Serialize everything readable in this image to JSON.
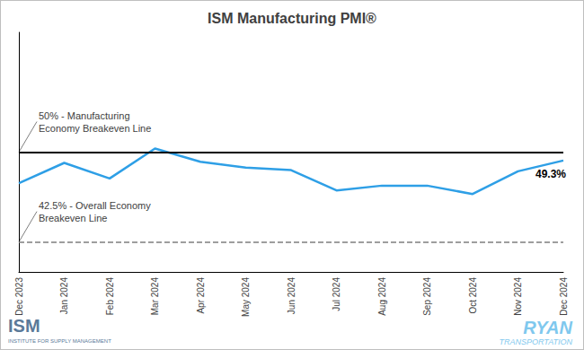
{
  "chart_data": {
    "type": "line",
    "title": "ISM Manufacturing PMI®",
    "categories": [
      "Dec 2023",
      "Jan 2024",
      "Feb 2024",
      "Mar 2024",
      "Apr 2024",
      "May 2024",
      "Jun 2024",
      "Jul 2024",
      "Aug 2024",
      "Sep 2024",
      "Oct 2024",
      "Nov 2024",
      "Dec 2024"
    ],
    "values": [
      47.4,
      49.1,
      47.8,
      50.3,
      49.2,
      48.7,
      48.5,
      46.8,
      47.2,
      47.2,
      46.5,
      48.4,
      49.3
    ],
    "value_labels": [
      null,
      null,
      null,
      null,
      null,
      null,
      null,
      null,
      null,
      null,
      null,
      null,
      "49.3%"
    ],
    "color": "#2e9fe6",
    "ylim": [
      40,
      60
    ],
    "grid": false,
    "tick_labels": "x",
    "annotations": [
      {
        "text": "50% - Manufacturing\nEconomy Breakeven Line",
        "y": 50,
        "line_style": "solid",
        "color": "#000000"
      },
      {
        "text": "42.5% - Overall Economy\nBreakeven Line",
        "y": 42.5,
        "line_style": "dashed",
        "color": "#7f7f7f"
      }
    ],
    "footer": {
      "left": [
        "ISM",
        "INSTITUTE FOR SUPPLY MANAGEMENT"
      ],
      "right": [
        "RYAN",
        "TRANSPORTATION"
      ]
    }
  }
}
